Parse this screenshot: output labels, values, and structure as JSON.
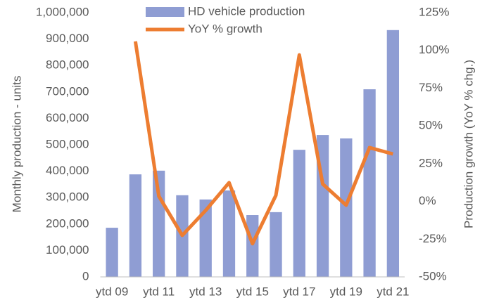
{
  "chart_data": {
    "type": "bar_line",
    "categories": [
      "ytd 09",
      null,
      "ytd 11",
      null,
      "ytd 13",
      null,
      "ytd 15",
      null,
      "ytd 17",
      null,
      "ytd 19",
      null,
      "ytd 21"
    ],
    "series": [
      {
        "name": "HD vehicle production",
        "type": "bar",
        "color": "#8f9dd3",
        "axis": "y",
        "values": [
          186000,
          388000,
          402000,
          309000,
          293000,
          327000,
          234000,
          245000,
          481000,
          537000,
          524000,
          710000,
          934000
        ]
      },
      {
        "name": "YoY % growth",
        "type": "line",
        "color": "#ed7d31",
        "axis": "y2",
        "values": [
          null,
          106,
          3.5,
          -22.5,
          -6,
          12.4,
          -28,
          4,
          97,
          11.5,
          -2.5,
          35.6,
          31.4
        ]
      }
    ],
    "ylabel": "Monthly production - units",
    "y2label": "Production growth (YoY % chg.)",
    "ylim": [
      0,
      1000000
    ],
    "yticks": [
      0,
      {
        "value": 100000,
        "label": "100,000"
      },
      {
        "value": 200000,
        "label": "200,000"
      },
      {
        "value": 300000,
        "label": "300,000"
      },
      {
        "value": 400000,
        "label": "400,000"
      },
      {
        "value": 500000,
        "label": "500,000"
      },
      {
        "value": 600000,
        "label": "600,000"
      },
      {
        "value": 700000,
        "label": "700,000"
      },
      {
        "value": 800000,
        "label": "800,000"
      },
      {
        "value": 900000,
        "label": "900,000"
      },
      {
        "value": 1000000,
        "label": "1,000,000"
      }
    ],
    "y2lim": [
      -50,
      125
    ],
    "y2ticks": [
      {
        "value": -50,
        "label": "-50%"
      },
      {
        "value": -25,
        "label": "-25%"
      },
      {
        "value": 0,
        "label": "0%"
      },
      {
        "value": 25,
        "label": "25%"
      },
      {
        "value": 50,
        "label": "50%"
      },
      {
        "value": 75,
        "label": "75%"
      },
      {
        "value": 100,
        "label": "100%"
      },
      {
        "value": 125,
        "label": "125%"
      }
    ],
    "grid": false,
    "legend": "top"
  }
}
